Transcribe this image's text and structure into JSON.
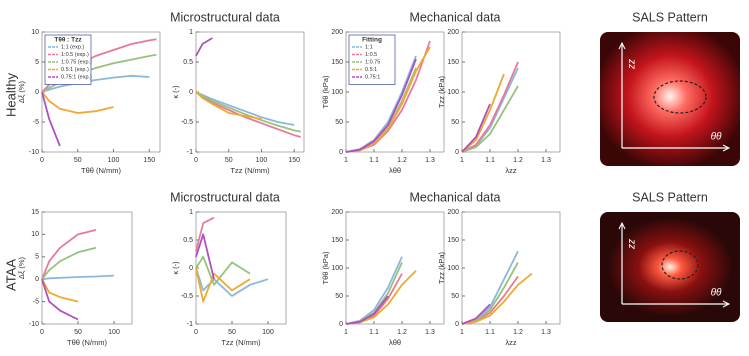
{
  "rows": [
    {
      "label": "Healthy",
      "headers": [
        "Microstructural data",
        "Mechanical data",
        "SALS Pattern"
      ],
      "axis_labels": [
        "zz",
        "θθ"
      ]
    },
    {
      "label": "ATAA",
      "headers": [
        "Microstructural data",
        "Mechanical data",
        "SALS Pattern"
      ],
      "axis_labels": [
        "zz",
        "θθ"
      ]
    }
  ],
  "chart_data": [
    {
      "type": "line",
      "xlabel": "Tθθ (N/mm)",
      "ylabel": "Δξ (%)",
      "xlim": [
        0,
        165
      ],
      "ylim": [
        -10,
        10
      ],
      "xticks": [
        0,
        50,
        100,
        150
      ],
      "yticks": [
        -10,
        -5,
        0,
        5,
        10
      ],
      "legend": "upper left",
      "legend_title": "Tθθ : Tzz",
      "x": [
        0,
        10,
        25,
        50,
        75,
        100,
        125,
        150,
        160
      ],
      "series": [
        {
          "name": "1:1 (exp.)",
          "color": "#8ab8dc",
          "values": [
            0,
            0.4,
            0.9,
            1.5,
            2,
            2.4,
            2.7,
            2.5,
            null
          ]
        },
        {
          "name": "1:0.5 (exp.)",
          "color": "#e87a98",
          "values": [
            0,
            1.2,
            2.6,
            4.5,
            6,
            7,
            8,
            8.6,
            8.8
          ]
        },
        {
          "name": "1:0.75 (exp.)",
          "color": "#96c27c",
          "values": [
            0,
            0.7,
            1.6,
            3,
            4,
            4.8,
            5.4,
            6,
            6.2
          ]
        },
        {
          "name": "0.5:1 (exp.)",
          "color": "#f0a830",
          "values": [
            0,
            -1.5,
            -2.8,
            -3.5,
            -3.2,
            -2.5,
            null,
            null,
            null
          ]
        },
        {
          "name": "0.75:1 (exp.)",
          "color": "#b050c0",
          "values": [
            0,
            -4.5,
            -9,
            null,
            null,
            null,
            null,
            null,
            null
          ]
        }
      ]
    },
    {
      "type": "line",
      "xlabel": "Tzz (N/mm)",
      "ylabel": "κ (-)",
      "xlim": [
        0,
        165
      ],
      "ylim": [
        -1,
        1
      ],
      "xticks": [
        0,
        50,
        100,
        150
      ],
      "yticks": [
        -1,
        -0.5,
        0,
        0.5,
        1
      ],
      "x": [
        0,
        10,
        25,
        50,
        75,
        100,
        125,
        150,
        160
      ],
      "series": [
        {
          "color": "#8ab8dc",
          "values": [
            0,
            -0.05,
            -0.12,
            -0.22,
            -0.32,
            -0.42,
            -0.5,
            -0.55,
            null
          ]
        },
        {
          "color": "#e87a98",
          "values": [
            0,
            -0.08,
            -0.18,
            -0.3,
            -0.42,
            -0.52,
            -0.62,
            -0.72,
            -0.75
          ]
        },
        {
          "color": "#96c27c",
          "values": [
            0,
            -0.06,
            -0.15,
            -0.26,
            -0.37,
            -0.47,
            -0.56,
            -0.64,
            -0.66
          ]
        },
        {
          "color": "#f0a830",
          "values": [
            0,
            -0.1,
            -0.2,
            -0.35,
            -0.4,
            -0.45,
            null,
            null,
            null
          ]
        },
        {
          "color": "#b050c0",
          "values": [
            0.6,
            0.8,
            0.9,
            null,
            null,
            null,
            null,
            null,
            null
          ]
        }
      ]
    },
    {
      "type": "line",
      "xlabel": "λθθ",
      "ylabel": "Tθθ (kPa)",
      "xlim": [
        1,
        1.35
      ],
      "ylim": [
        0,
        200
      ],
      "xticks": [
        1,
        1.1,
        1.2,
        1.3
      ],
      "yticks": [
        0,
        50,
        100,
        150,
        200
      ],
      "legend": "upper left",
      "legend_title": "Fitting",
      "x": [
        1,
        1.05,
        1.1,
        1.15,
        1.2,
        1.25,
        1.3
      ],
      "series": [
        {
          "name": "1:1",
          "color": "#8ab8dc",
          "values": [
            0,
            5,
            20,
            50,
            100,
            160,
            null
          ]
        },
        {
          "name": "1:0.5",
          "color": "#e87a98",
          "values": [
            0,
            3,
            12,
            35,
            70,
            120,
            185
          ]
        },
        {
          "name": "1:0.75",
          "color": "#96c27c",
          "values": [
            0,
            4,
            15,
            40,
            85,
            140,
            null
          ]
        },
        {
          "name": "0.5:1",
          "color": "#f0a830",
          "values": [
            0,
            3,
            14,
            38,
            80,
            135,
            175
          ]
        },
        {
          "name": "0.75:1",
          "color": "#b050c0",
          "values": [
            0,
            4,
            18,
            45,
            95,
            155,
            null
          ]
        }
      ]
    },
    {
      "type": "line",
      "xlabel": "λzz",
      "ylabel": "Tzz (kPa)",
      "xlim": [
        1,
        1.35
      ],
      "ylim": [
        0,
        200
      ],
      "xticks": [
        1,
        1.1,
        1.2,
        1.3
      ],
      "yticks": [
        0,
        50,
        100,
        150,
        200
      ],
      "x": [
        1,
        1.05,
        1.1,
        1.15,
        1.2,
        1.25,
        1.3
      ],
      "series": [
        {
          "color": "#8ab8dc",
          "values": [
            0,
            10,
            40,
            90,
            140,
            null,
            null
          ]
        },
        {
          "color": "#e87a98",
          "values": [
            0,
            12,
            45,
            95,
            150,
            null,
            null
          ]
        },
        {
          "color": "#96c27c",
          "values": [
            0,
            8,
            30,
            70,
            110,
            null,
            null
          ]
        },
        {
          "color": "#f0a830",
          "values": [
            0,
            20,
            70,
            130,
            null,
            null,
            null
          ]
        },
        {
          "color": "#b050c0",
          "values": [
            0,
            25,
            80,
            null,
            null,
            null,
            null
          ]
        }
      ]
    },
    {
      "type": "line",
      "xlabel": "Tθθ (N/mm)",
      "ylabel": "Δξ (%)",
      "xlim": [
        0,
        125
      ],
      "ylim": [
        -10,
        15
      ],
      "xticks": [
        0,
        50,
        100
      ],
      "yticks": [
        -10,
        -5,
        0,
        5,
        10,
        15
      ],
      "x": [
        0,
        10,
        25,
        50,
        75,
        100
      ],
      "series": [
        {
          "color": "#8ab8dc",
          "values": [
            0,
            0.2,
            0.3,
            0.5,
            0.6,
            0.8
          ]
        },
        {
          "color": "#e87a98",
          "values": [
            0,
            4,
            7,
            10,
            11,
            null
          ]
        },
        {
          "color": "#96c27c",
          "values": [
            0,
            2,
            4,
            6,
            7,
            null
          ]
        },
        {
          "color": "#f0a830",
          "values": [
            0,
            -3,
            -4,
            -5,
            null,
            null
          ]
        },
        {
          "color": "#b050c0",
          "values": [
            0,
            -5,
            -7,
            -9,
            null,
            null
          ]
        }
      ]
    },
    {
      "type": "line",
      "xlabel": "Tzz (N/mm)",
      "ylabel": "κ (-)",
      "xlim": [
        0,
        125
      ],
      "ylim": [
        -1,
        1
      ],
      "xticks": [
        0,
        50,
        100
      ],
      "yticks": [
        -1,
        -0.5,
        0,
        0.5,
        1
      ],
      "x": [
        0,
        10,
        25,
        50,
        75,
        100
      ],
      "series": [
        {
          "color": "#8ab8dc",
          "values": [
            0,
            -0.4,
            -0.2,
            -0.5,
            -0.3,
            -0.2
          ]
        },
        {
          "color": "#e87a98",
          "values": [
            0.3,
            0.8,
            0.9,
            null,
            null,
            null
          ]
        },
        {
          "color": "#96c27c",
          "values": [
            0,
            0.2,
            -0.3,
            0.1,
            -0.1,
            null
          ]
        },
        {
          "color": "#f0a830",
          "values": [
            0,
            -0.6,
            -0.1,
            -0.4,
            -0.2,
            null
          ]
        },
        {
          "color": "#b050c0",
          "values": [
            0.2,
            0.6,
            -0.2,
            null,
            null,
            null
          ]
        }
      ]
    },
    {
      "type": "line",
      "xlabel": "λθθ",
      "ylabel": "Tθθ (kPa)",
      "xlim": [
        1,
        1.35
      ],
      "ylim": [
        0,
        200
      ],
      "xticks": [
        1,
        1.1,
        1.2,
        1.3
      ],
      "yticks": [
        0,
        50,
        100,
        150,
        200
      ],
      "x": [
        1,
        1.05,
        1.1,
        1.15,
        1.2,
        1.25
      ],
      "series": [
        {
          "color": "#8ab8dc",
          "values": [
            0,
            6,
            25,
            65,
            120,
            null
          ]
        },
        {
          "color": "#e87a98",
          "values": [
            0,
            3,
            15,
            45,
            90,
            null
          ]
        },
        {
          "color": "#96c27c",
          "values": [
            0,
            5,
            20,
            55,
            110,
            null
          ]
        },
        {
          "color": "#f0a830",
          "values": [
            0,
            3,
            12,
            35,
            70,
            95
          ]
        },
        {
          "color": "#b050c0",
          "values": [
            0,
            4,
            18,
            50,
            null,
            null
          ]
        }
      ]
    },
    {
      "type": "line",
      "xlabel": "λzz",
      "ylabel": "Tzz (kPa)",
      "xlim": [
        1,
        1.35
      ],
      "ylim": [
        0,
        200
      ],
      "xticks": [
        1,
        1.1,
        1.2,
        1.3
      ],
      "yticks": [
        0,
        50,
        100,
        150,
        200
      ],
      "x": [
        1,
        1.05,
        1.1,
        1.15,
        1.2,
        1.25
      ],
      "series": [
        {
          "color": "#8ab8dc",
          "values": [
            0,
            8,
            30,
            80,
            130,
            null
          ]
        },
        {
          "color": "#e87a98",
          "values": [
            0,
            5,
            20,
            50,
            85,
            null
          ]
        },
        {
          "color": "#96c27c",
          "values": [
            0,
            6,
            25,
            65,
            110,
            null
          ]
        },
        {
          "color": "#f0a830",
          "values": [
            0,
            4,
            15,
            40,
            70,
            90
          ]
        },
        {
          "color": "#b050c0",
          "values": [
            0,
            10,
            35,
            null,
            null,
            null
          ]
        }
      ]
    }
  ]
}
